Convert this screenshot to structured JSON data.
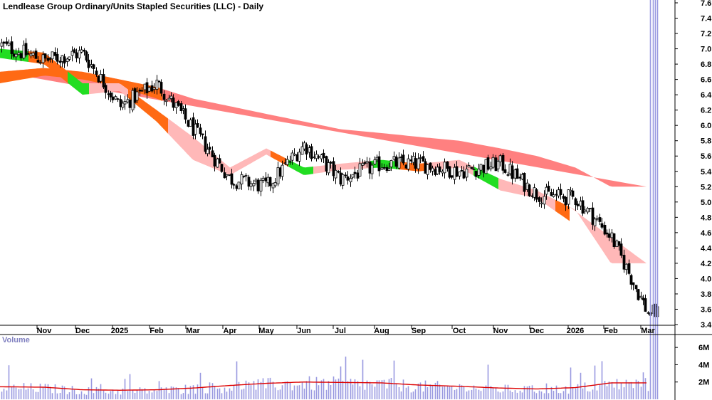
{
  "chart_data": [
    {
      "type": "candlestick",
      "title": "Lendlease Group Ordinary/Units Stapled Securities (LLC) - Daily",
      "x_labels": [
        "Nov",
        "Dec",
        "2025",
        "Feb",
        "Mar",
        "Apr",
        "May",
        "Jun",
        "Jul",
        "Aug",
        "Sep",
        "Oct",
        "Nov",
        "Dec",
        "2026",
        "Feb",
        "Mar"
      ],
      "ylim": [
        3.4,
        7.6
      ],
      "y_ticks": [
        "3.4",
        "3.6",
        "3.8",
        "4.0",
        "4.2",
        "4.4",
        "4.6",
        "4.8",
        "5.0",
        "5.2",
        "5.4",
        "5.6",
        "5.8",
        "6.0",
        "6.2",
        "6.4",
        "6.6",
        "6.8",
        "7.0",
        "7.2",
        "7.4",
        "7.6"
      ],
      "price_anchors": [
        {
          "month": "Oct",
          "close": 7.05
        },
        {
          "month": "Nov",
          "close": 6.85
        },
        {
          "month": "Dec",
          "close": 6.95
        },
        {
          "month": "2025",
          "close": 6.25
        },
        {
          "month": "Feb",
          "close": 6.55
        },
        {
          "month": "Mar",
          "close": 5.95
        },
        {
          "month": "Apr",
          "close": 5.3
        },
        {
          "month": "May",
          "close": 5.2
        },
        {
          "month": "Jun",
          "close": 5.75
        },
        {
          "month": "Jul",
          "close": 5.3
        },
        {
          "month": "Aug",
          "close": 5.5
        },
        {
          "month": "Sep",
          "close": 5.5
        },
        {
          "month": "Oct",
          "close": 5.4
        },
        {
          "month": "Nov",
          "close": 5.5
        },
        {
          "month": "Dec",
          "close": 5.1
        },
        {
          "month": "2026",
          "close": 5.05
        },
        {
          "month": "Feb",
          "close": 4.55
        },
        {
          "month": "Mar",
          "close": 3.55
        }
      ],
      "short_ema_band_anchors": [
        {
          "month": "Oct",
          "upper": 7.0,
          "lower": 6.88
        },
        {
          "month": "Dec",
          "upper": 6.95,
          "lower": 6.8
        },
        {
          "month": "2025",
          "upper": 6.55,
          "lower": 6.4
        },
        {
          "month": "Feb",
          "upper": 6.55,
          "lower": 6.45
        },
        {
          "month": "Mar",
          "upper": 6.2,
          "lower": 6.05
        },
        {
          "month": "Apr",
          "upper": 5.85,
          "lower": 5.55
        },
        {
          "month": "May",
          "upper": 5.45,
          "lower": 5.35
        },
        {
          "month": "Jun",
          "upper": 5.7,
          "lower": 5.62
        },
        {
          "month": "Jul",
          "upper": 5.45,
          "lower": 5.35
        },
        {
          "month": "Aug",
          "upper": 5.5,
          "lower": 5.42
        },
        {
          "month": "Sep",
          "upper": 5.55,
          "lower": 5.45
        },
        {
          "month": "Oct",
          "upper": 5.5,
          "lower": 5.4
        },
        {
          "month": "Nov",
          "upper": 5.55,
          "lower": 5.45
        },
        {
          "month": "Dec",
          "upper": 5.3,
          "lower": 5.15
        },
        {
          "month": "2026",
          "upper": 5.15,
          "lower": 5.05
        },
        {
          "month": "Feb",
          "upper": 4.9,
          "lower": 4.7
        },
        {
          "month": "Mar",
          "upper": 4.2,
          "lower": 3.95
        }
      ],
      "long_ema_band_anchors": [
        {
          "month": "Oct",
          "upper": 6.7,
          "lower": 6.55
        },
        {
          "month": "Dec",
          "upper": 6.75,
          "lower": 6.65
        },
        {
          "month": "2025",
          "upper": 6.7,
          "lower": 6.6
        },
        {
          "month": "Feb",
          "upper": 6.6,
          "lower": 6.5
        },
        {
          "month": "Mar",
          "upper": 6.5,
          "lower": 6.35
        },
        {
          "month": "Apr",
          "upper": 6.35,
          "lower": 6.15
        },
        {
          "month": "May",
          "upper": 6.25,
          "lower": 6.05
        },
        {
          "month": "Jun",
          "upper": 6.15,
          "lower": 5.95
        },
        {
          "month": "Jul",
          "upper": 6.05,
          "lower": 5.85
        },
        {
          "month": "Aug",
          "upper": 5.95,
          "lower": 5.75
        },
        {
          "month": "Sep",
          "upper": 5.9,
          "lower": 5.7
        },
        {
          "month": "Oct",
          "upper": 5.85,
          "lower": 5.65
        },
        {
          "month": "Nov",
          "upper": 5.8,
          "lower": 5.6
        },
        {
          "month": "Dec",
          "upper": 5.7,
          "lower": 5.5
        },
        {
          "month": "2026",
          "upper": 5.6,
          "lower": 5.4
        },
        {
          "month": "Feb",
          "upper": 5.45,
          "lower": 5.2
        },
        {
          "month": "Mar",
          "upper": 5.2,
          "lower": 4.9
        }
      ],
      "grid": false,
      "colors": {
        "candle": "#000000",
        "long_band": "#ff8080",
        "short_band_falling": "#ffb8b8",
        "short_band_orange": "#ff6a14",
        "short_band_green": "#22dd22",
        "axis": "#000000"
      }
    },
    {
      "type": "bar",
      "title": "Volume",
      "ylim": [
        0,
        7000000
      ],
      "y_ticks": [
        "2M",
        "4M",
        "6M"
      ],
      "volume_average_anchors": [
        {
          "month": "Oct",
          "value": 1450000
        },
        {
          "month": "Dec",
          "value": 1400000
        },
        {
          "month": "2025",
          "value": 1100000
        },
        {
          "month": "Feb",
          "value": 1050000
        },
        {
          "month": "Mar",
          "value": 1100000
        },
        {
          "month": "Apr",
          "value": 1300000
        },
        {
          "month": "May",
          "value": 1600000
        },
        {
          "month": "Jun",
          "value": 1850000
        },
        {
          "month": "Jul",
          "value": 2000000
        },
        {
          "month": "Aug",
          "value": 1950000
        },
        {
          "month": "Sep",
          "value": 1900000
        },
        {
          "month": "Oct",
          "value": 1650000
        },
        {
          "month": "Nov",
          "value": 1500000
        },
        {
          "month": "Dec",
          "value": 1300000
        },
        {
          "month": "2026",
          "value": 1200000
        },
        {
          "month": "Feb",
          "value": 1350000
        },
        {
          "month": "Mar",
          "value": 1900000
        }
      ],
      "colors": {
        "bar": "#9999e0",
        "average": "#dd0000"
      }
    }
  ]
}
